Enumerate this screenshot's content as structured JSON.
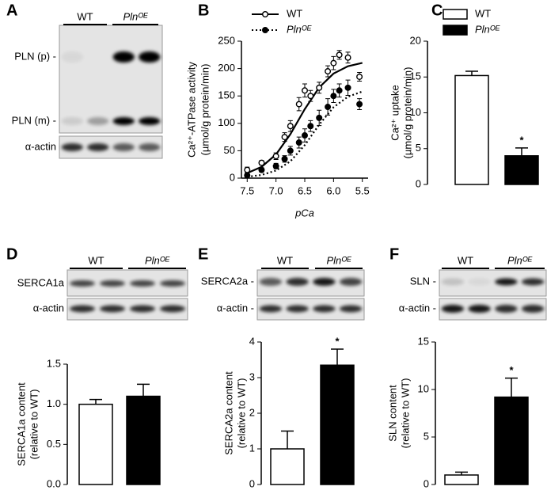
{
  "panel_labels": [
    "A",
    "B",
    "C",
    "D",
    "E",
    "F"
  ],
  "blots": [
    {
      "groups": [
        "WT",
        "Plnᴼᴱ"
      ],
      "rows": [
        "PLN (p) -",
        "PLN (m) -",
        "α-actin"
      ]
    },
    {
      "groups": [
        "WT",
        "Plnᴼᴱ"
      ],
      "rows": [
        "SERCA1a",
        "α-actin"
      ]
    },
    {
      "groups": [
        "WT",
        "Plnᴼᴱ"
      ],
      "rows": [
        "SERCA2a -",
        "α-actin -"
      ]
    },
    {
      "groups": [
        "WT",
        "Plnᴼᴱ"
      ],
      "rows": [
        "SLN -",
        "α-actin -"
      ]
    }
  ],
  "chart_data": [
    {
      "type": "scatter",
      "xlabel": "pCa",
      "ylabel": [
        "Ca²⁺-ATPase activity",
        "(µmol/g protein/min)"
      ],
      "x": [
        7.5,
        7.25,
        7.0,
        6.85,
        6.75,
        6.6,
        6.5,
        6.4,
        6.25,
        6.1,
        6.0,
        5.9,
        5.75,
        5.55
      ],
      "series": [
        {
          "name": "WT",
          "color": "#000",
          "marker_fill": "#fff",
          "line_style": "solid",
          "values": [
            15,
            28,
            40,
            75,
            95,
            135,
            160,
            150,
            165,
            195,
            210,
            225,
            220,
            185
          ],
          "errors": [
            5,
            4,
            6,
            8,
            10,
            12,
            12,
            10,
            10,
            10,
            12,
            8,
            10,
            8
          ],
          "fit": {
            "x": [
              7.5,
              7.25,
              7.0,
              6.75,
              6.5,
              6.25,
              6.0,
              5.75,
              5.5
            ],
            "values": [
              9.2,
              20.6,
              43.2,
              80.2,
              125.9,
              165.5,
              190.9,
              204.2,
              210.4
            ]
          }
        },
        {
          "name": "Plnᴼᴱ",
          "color": "#000",
          "marker_fill": "#000",
          "line_style": "dotted",
          "values": [
            5,
            15,
            22,
            35,
            50,
            65,
            78,
            95,
            110,
            130,
            150,
            160,
            165,
            135
          ],
          "errors": [
            4,
            4,
            5,
            6,
            8,
            10,
            12,
            10,
            14,
            15,
            12,
            12,
            14,
            10
          ],
          "fit": {
            "x": [
              7.5,
              7.25,
              7.0,
              6.75,
              6.5,
              6.25,
              6.0,
              5.75,
              5.5
            ],
            "values": [
              2.4,
              5.8,
              13.8,
              30.7,
              60.2,
              97.6,
              129.4,
              148.6,
              158.1
            ]
          }
        }
      ],
      "xlim": [
        7.6,
        5.4
      ],
      "xticks": [
        7.5,
        {
          "value": 7,
          "label": "7.0"
        },
        6.5,
        {
          "value": 6,
          "label": "6.0"
        },
        5.5
      ],
      "ylim": [
        0,
        250
      ],
      "yticks": [
        0,
        50,
        100,
        150,
        200,
        250
      ]
    },
    {
      "type": "bar",
      "ylabel": [
        "Ca²⁺ uptake",
        "(µmol/g protein/min)"
      ],
      "series": [
        {
          "name": "WT",
          "color": "#fff",
          "values": [
            15.2
          ],
          "errors": [
            0.6
          ]
        },
        {
          "name": "Plnᴼᴱ",
          "color": "#000",
          "values": [
            4.0
          ],
          "errors": [
            1.1
          ]
        }
      ],
      "annotation": "*",
      "ylim": [
        0,
        20
      ],
      "yticks": [
        0,
        5,
        10,
        15,
        20
      ]
    },
    {
      "type": "bar",
      "ylabel": [
        "SERCA1a content",
        "(relative to WT)"
      ],
      "categories": [
        null,
        null
      ],
      "values": [
        1.0,
        1.1
      ],
      "errors": [
        0.06,
        0.15
      ],
      "colors": [
        "#fff",
        "#000"
      ],
      "ylim": [
        0,
        1.5
      ],
      "yticks": [
        {
          "value": 0,
          "label": "0.0"
        },
        0.5,
        {
          "value": 1,
          "label": "1.0"
        },
        1.5
      ]
    },
    {
      "type": "bar",
      "ylabel": [
        "SERCA2a content",
        "(relative to WT)"
      ],
      "categories": [
        null,
        null
      ],
      "values": [
        1.0,
        3.35
      ],
      "errors": [
        0.5,
        0.45
      ],
      "colors": [
        "#fff",
        "#000"
      ],
      "annotation": "*",
      "ylim": [
        0,
        4
      ],
      "yticks": [
        0,
        1,
        2,
        3,
        4
      ]
    },
    {
      "type": "bar",
      "ylabel": [
        "SLN content",
        "(relative to WT)"
      ],
      "categories": [
        null,
        null
      ],
      "values": [
        1.0,
        9.2
      ],
      "errors": [
        0.3,
        2.0
      ],
      "colors": [
        "#fff",
        "#000"
      ],
      "annotation": "*",
      "ylim": [
        0,
        15
      ],
      "yticks": [
        0,
        5,
        10,
        15
      ]
    }
  ]
}
